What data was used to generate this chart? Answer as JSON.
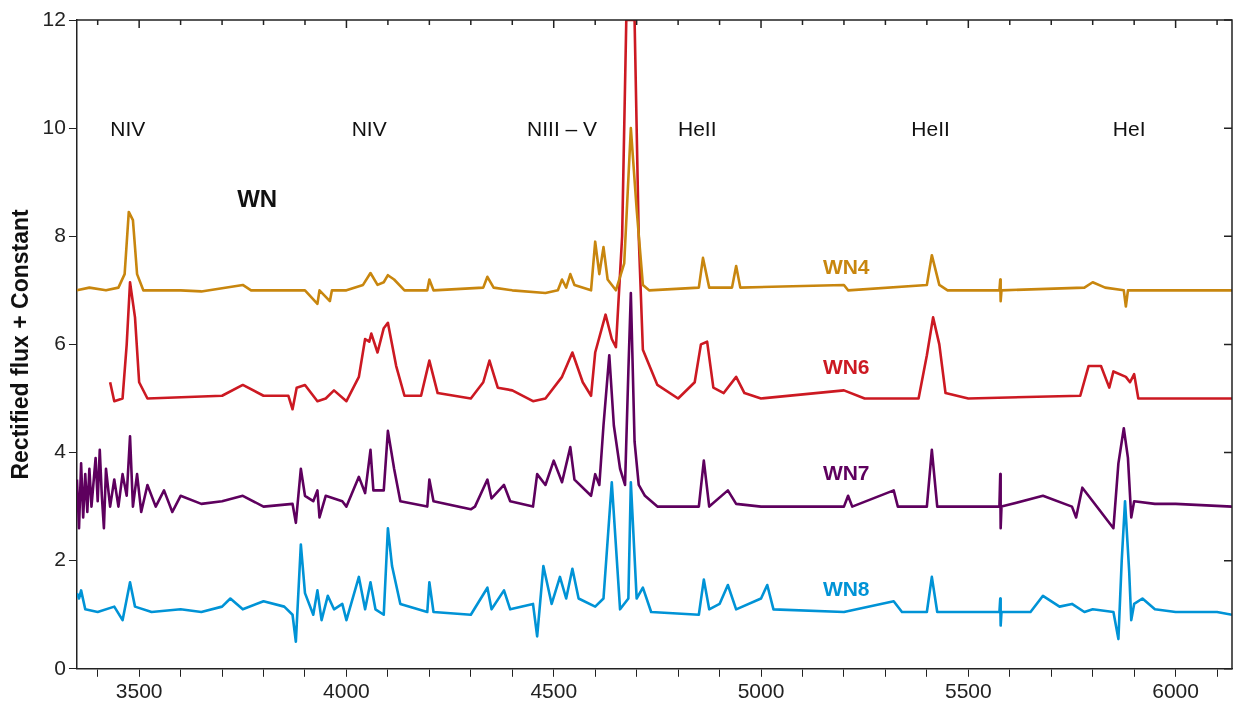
{
  "chart_data": {
    "type": "line",
    "ylabel": "Rectified flux + Constant",
    "xlim": [
      3350,
      6136
    ],
    "xticks": [
      {
        "value": 3400,
        "label": null
      },
      3500,
      {
        "value": 3600,
        "label": null
      },
      {
        "value": 3700,
        "label": null
      },
      {
        "value": 3800,
        "label": null
      },
      {
        "value": 3900,
        "label": null
      },
      4000,
      {
        "value": 4100,
        "label": null
      },
      {
        "value": 4200,
        "label": null
      },
      {
        "value": 4300,
        "label": null
      },
      {
        "value": 4400,
        "label": null
      },
      4500,
      {
        "value": 4600,
        "label": null
      },
      {
        "value": 4700,
        "label": null
      },
      {
        "value": 4800,
        "label": null
      },
      {
        "value": 4900,
        "label": null
      },
      5000,
      {
        "value": 5100,
        "label": null
      },
      {
        "value": 5200,
        "label": null
      },
      {
        "value": 5300,
        "label": null
      },
      {
        "value": 5400,
        "label": null
      },
      5500,
      {
        "value": 5600,
        "label": null
      },
      {
        "value": 5700,
        "label": null
      },
      {
        "value": 5800,
        "label": null
      },
      {
        "value": 5900,
        "label": null
      },
      6000,
      {
        "value": 6100,
        "label": null
      }
    ],
    "ylim": [
      0,
      12
    ],
    "yticks": [
      0,
      2,
      4,
      6,
      8,
      10,
      12
    ],
    "grid": false,
    "legend": false,
    "marker": "none",
    "line_style": "solid",
    "annotations": [
      "WN",
      "NIV",
      "NIV",
      "NIII – V",
      "HeII",
      "HeII",
      "HeI"
    ],
    "series": [
      {
        "name": "WN4",
        "color": "#c8860e",
        "x": [
          3350,
          3380,
          3420,
          3450,
          3465,
          3475,
          3485,
          3495,
          3510,
          3600,
          3650,
          3750,
          3770,
          3900,
          3930,
          3935,
          3960,
          3965,
          4000,
          4040,
          4058,
          4075,
          4090,
          4100,
          4115,
          4140,
          4195,
          4200,
          4210,
          4330,
          4340,
          4355,
          4400,
          4480,
          4510,
          4520,
          4530,
          4540,
          4550,
          4590,
          4600,
          4610,
          4620,
          4630,
          4650,
          4670,
          4686,
          4700,
          4715,
          4730,
          4850,
          4860,
          4875,
          4930,
          4940,
          4950,
          5200,
          5210,
          5400,
          5412,
          5430,
          5450,
          5575,
          5577,
          5578,
          5580,
          5780,
          5800,
          5830,
          5875,
          5880,
          5885,
          6136
        ],
        "values": [
          7.0,
          7.05,
          7.0,
          7.05,
          7.3,
          8.45,
          8.3,
          7.3,
          7.0,
          7.0,
          6.98,
          7.1,
          7.0,
          7.0,
          6.75,
          7.0,
          6.8,
          7.0,
          7.0,
          7.1,
          7.32,
          7.1,
          7.15,
          7.28,
          7.2,
          7.0,
          7.0,
          7.2,
          7.0,
          7.05,
          7.25,
          7.05,
          7.0,
          6.95,
          7.0,
          7.2,
          7.05,
          7.3,
          7.1,
          7.0,
          7.9,
          7.3,
          7.8,
          7.2,
          7.0,
          7.5,
          10.0,
          8.5,
          7.1,
          7.0,
          7.05,
          7.6,
          7.05,
          7.05,
          7.45,
          7.05,
          7.1,
          7.0,
          7.1,
          7.65,
          7.1,
          7.0,
          7.0,
          7.2,
          6.8,
          7.0,
          7.05,
          7.15,
          7.05,
          7.0,
          6.7,
          7.0,
          7.0
        ]
      },
      {
        "name": "WN6",
        "color": "#cc1922",
        "x": [
          3430,
          3440,
          3460,
          3470,
          3478,
          3490,
          3500,
          3520,
          3700,
          3750,
          3800,
          3860,
          3870,
          3880,
          3900,
          3930,
          3950,
          3970,
          4000,
          4030,
          4045,
          4055,
          4060,
          4075,
          4090,
          4100,
          4120,
          4140,
          4180,
          4200,
          4220,
          4300,
          4330,
          4345,
          4365,
          4400,
          4450,
          4480,
          4520,
          4545,
          4570,
          4590,
          4600,
          4625,
          4640,
          4650,
          4665,
          4675,
          4695,
          4705,
          4715,
          4750,
          4800,
          4840,
          4855,
          4870,
          4885,
          4910,
          4940,
          4960,
          5000,
          5200,
          5250,
          5380,
          5400,
          5415,
          5430,
          5445,
          5500,
          5770,
          5790,
          5820,
          5840,
          5850,
          5880,
          5890,
          5900,
          5910,
          6136
        ],
        "values": [
          5.3,
          4.95,
          5.0,
          6.0,
          7.15,
          6.5,
          5.3,
          5.0,
          5.05,
          5.25,
          5.05,
          5.05,
          4.8,
          5.2,
          5.25,
          4.95,
          5.0,
          5.15,
          4.95,
          5.4,
          6.1,
          6.05,
          6.2,
          5.85,
          6.3,
          6.4,
          5.6,
          5.05,
          5.05,
          5.7,
          5.1,
          5.0,
          5.3,
          5.7,
          5.2,
          5.15,
          4.95,
          5.0,
          5.4,
          5.85,
          5.3,
          5.05,
          5.85,
          6.55,
          6.1,
          5.95,
          8.0,
          12,
          12,
          8.0,
          5.9,
          5.25,
          5.0,
          5.3,
          6.0,
          6.05,
          5.2,
          5.1,
          5.4,
          5.1,
          5.0,
          5.15,
          5.0,
          5.0,
          5.8,
          6.5,
          6.0,
          5.1,
          5.0,
          5.05,
          5.6,
          5.6,
          5.2,
          5.5,
          5.4,
          5.3,
          5.45,
          5.0,
          5.0
        ]
      },
      {
        "name": "WN7",
        "color": "#5e005e",
        "x": [
          3350,
          3355,
          3360,
          3365,
          3370,
          3375,
          3380,
          3385,
          3395,
          3400,
          3405,
          3410,
          3415,
          3420,
          3430,
          3440,
          3450,
          3460,
          3470,
          3478,
          3485,
          3495,
          3505,
          3520,
          3540,
          3560,
          3580,
          3600,
          3650,
          3700,
          3750,
          3800,
          3870,
          3878,
          3890,
          3900,
          3920,
          3930,
          3935,
          3950,
          3990,
          4000,
          4030,
          4045,
          4058,
          4065,
          4080,
          4090,
          4100,
          4115,
          4130,
          4195,
          4200,
          4210,
          4300,
          4310,
          4340,
          4350,
          4380,
          4395,
          4450,
          4460,
          4480,
          4500,
          4520,
          4540,
          4550,
          4590,
          4600,
          4610,
          4620,
          4634,
          4645,
          4660,
          4672,
          4680,
          4686,
          4695,
          4705,
          4720,
          4750,
          4850,
          4862,
          4875,
          4920,
          4940,
          5000,
          5200,
          5210,
          5220,
          5320,
          5330,
          5400,
          5412,
          5425,
          5575,
          5577,
          5578,
          5580,
          5680,
          5750,
          5760,
          5775,
          5795,
          5850,
          5862,
          5875,
          5885,
          5893,
          5900,
          5950,
          6000,
          6136
        ],
        "values": [
          3.5,
          2.6,
          3.8,
          2.8,
          3.6,
          2.9,
          3.7,
          3.0,
          3.9,
          3.1,
          4.05,
          3.2,
          2.6,
          3.7,
          3.0,
          3.5,
          3.0,
          3.6,
          3.2,
          4.3,
          3.0,
          3.6,
          2.9,
          3.4,
          3.0,
          3.3,
          2.9,
          3.2,
          3.05,
          3.1,
          3.2,
          3.0,
          3.05,
          2.7,
          3.7,
          3.2,
          3.1,
          3.3,
          2.8,
          3.2,
          3.1,
          3.0,
          3.55,
          3.25,
          4.05,
          3.3,
          3.3,
          3.3,
          4.4,
          3.7,
          3.1,
          3.0,
          3.5,
          3.1,
          2.95,
          3.0,
          3.5,
          3.15,
          3.4,
          3.1,
          3.0,
          3.6,
          3.4,
          3.85,
          3.45,
          4.1,
          3.5,
          3.2,
          3.6,
          3.4,
          4.5,
          5.8,
          4.5,
          3.7,
          3.4,
          5.5,
          6.95,
          4.2,
          3.4,
          3.2,
          3.0,
          3.0,
          3.85,
          3.0,
          3.3,
          3.05,
          3.0,
          3.0,
          3.2,
          3.0,
          3.3,
          3.0,
          3.0,
          4.05,
          3.0,
          3.0,
          3.6,
          2.6,
          3.0,
          3.2,
          3.0,
          2.8,
          3.35,
          3.15,
          2.6,
          3.8,
          4.45,
          3.9,
          2.8,
          3.1,
          3.05,
          3.05,
          3.0
        ]
      },
      {
        "name": "WN8",
        "color": "#0093d6",
        "x": [
          3350,
          3355,
          3360,
          3370,
          3400,
          3440,
          3460,
          3478,
          3490,
          3530,
          3600,
          3650,
          3700,
          3720,
          3750,
          3800,
          3850,
          3870,
          3878,
          3890,
          3900,
          3920,
          3930,
          3940,
          3955,
          3970,
          3990,
          4000,
          4030,
          4045,
          4058,
          4070,
          4090,
          4100,
          4110,
          4130,
          4195,
          4200,
          4210,
          4300,
          4340,
          4350,
          4380,
          4395,
          4450,
          4460,
          4475,
          4495,
          4515,
          4530,
          4545,
          4560,
          4600,
          4620,
          4640,
          4660,
          4680,
          4686,
          4700,
          4715,
          4735,
          4850,
          4862,
          4875,
          4900,
          4920,
          4940,
          5000,
          5015,
          5030,
          5200,
          5320,
          5340,
          5400,
          5412,
          5425,
          5575,
          5577,
          5578,
          5580,
          5650,
          5680,
          5720,
          5750,
          5780,
          5800,
          5850,
          5862,
          5870,
          5878,
          5888,
          5893,
          5900,
          5920,
          5950,
          6000,
          6100,
          6136
        ],
        "values": [
          1.4,
          1.3,
          1.45,
          1.1,
          1.05,
          1.15,
          0.9,
          1.6,
          1.15,
          1.05,
          1.1,
          1.05,
          1.15,
          1.3,
          1.1,
          1.25,
          1.15,
          1.0,
          0.5,
          2.3,
          1.4,
          1.0,
          1.45,
          0.9,
          1.35,
          1.1,
          1.2,
          0.9,
          1.7,
          1.1,
          1.6,
          1.1,
          1.0,
          2.6,
          1.9,
          1.2,
          1.05,
          1.6,
          1.05,
          1.0,
          1.5,
          1.1,
          1.45,
          1.1,
          1.2,
          0.6,
          1.9,
          1.2,
          1.7,
          1.3,
          1.85,
          1.3,
          1.15,
          1.3,
          3.45,
          1.1,
          1.3,
          3.45,
          1.3,
          1.5,
          1.05,
          1.0,
          1.65,
          1.1,
          1.2,
          1.55,
          1.1,
          1.3,
          1.55,
          1.1,
          1.05,
          1.25,
          1.05,
          1.05,
          1.7,
          1.05,
          1.05,
          1.3,
          0.8,
          1.05,
          1.05,
          1.35,
          1.15,
          1.2,
          1.05,
          1.1,
          1.05,
          0.55,
          2.0,
          3.1,
          1.8,
          0.9,
          1.2,
          1.3,
          1.1,
          1.05,
          1.05,
          1.0
        ]
      }
    ]
  }
}
